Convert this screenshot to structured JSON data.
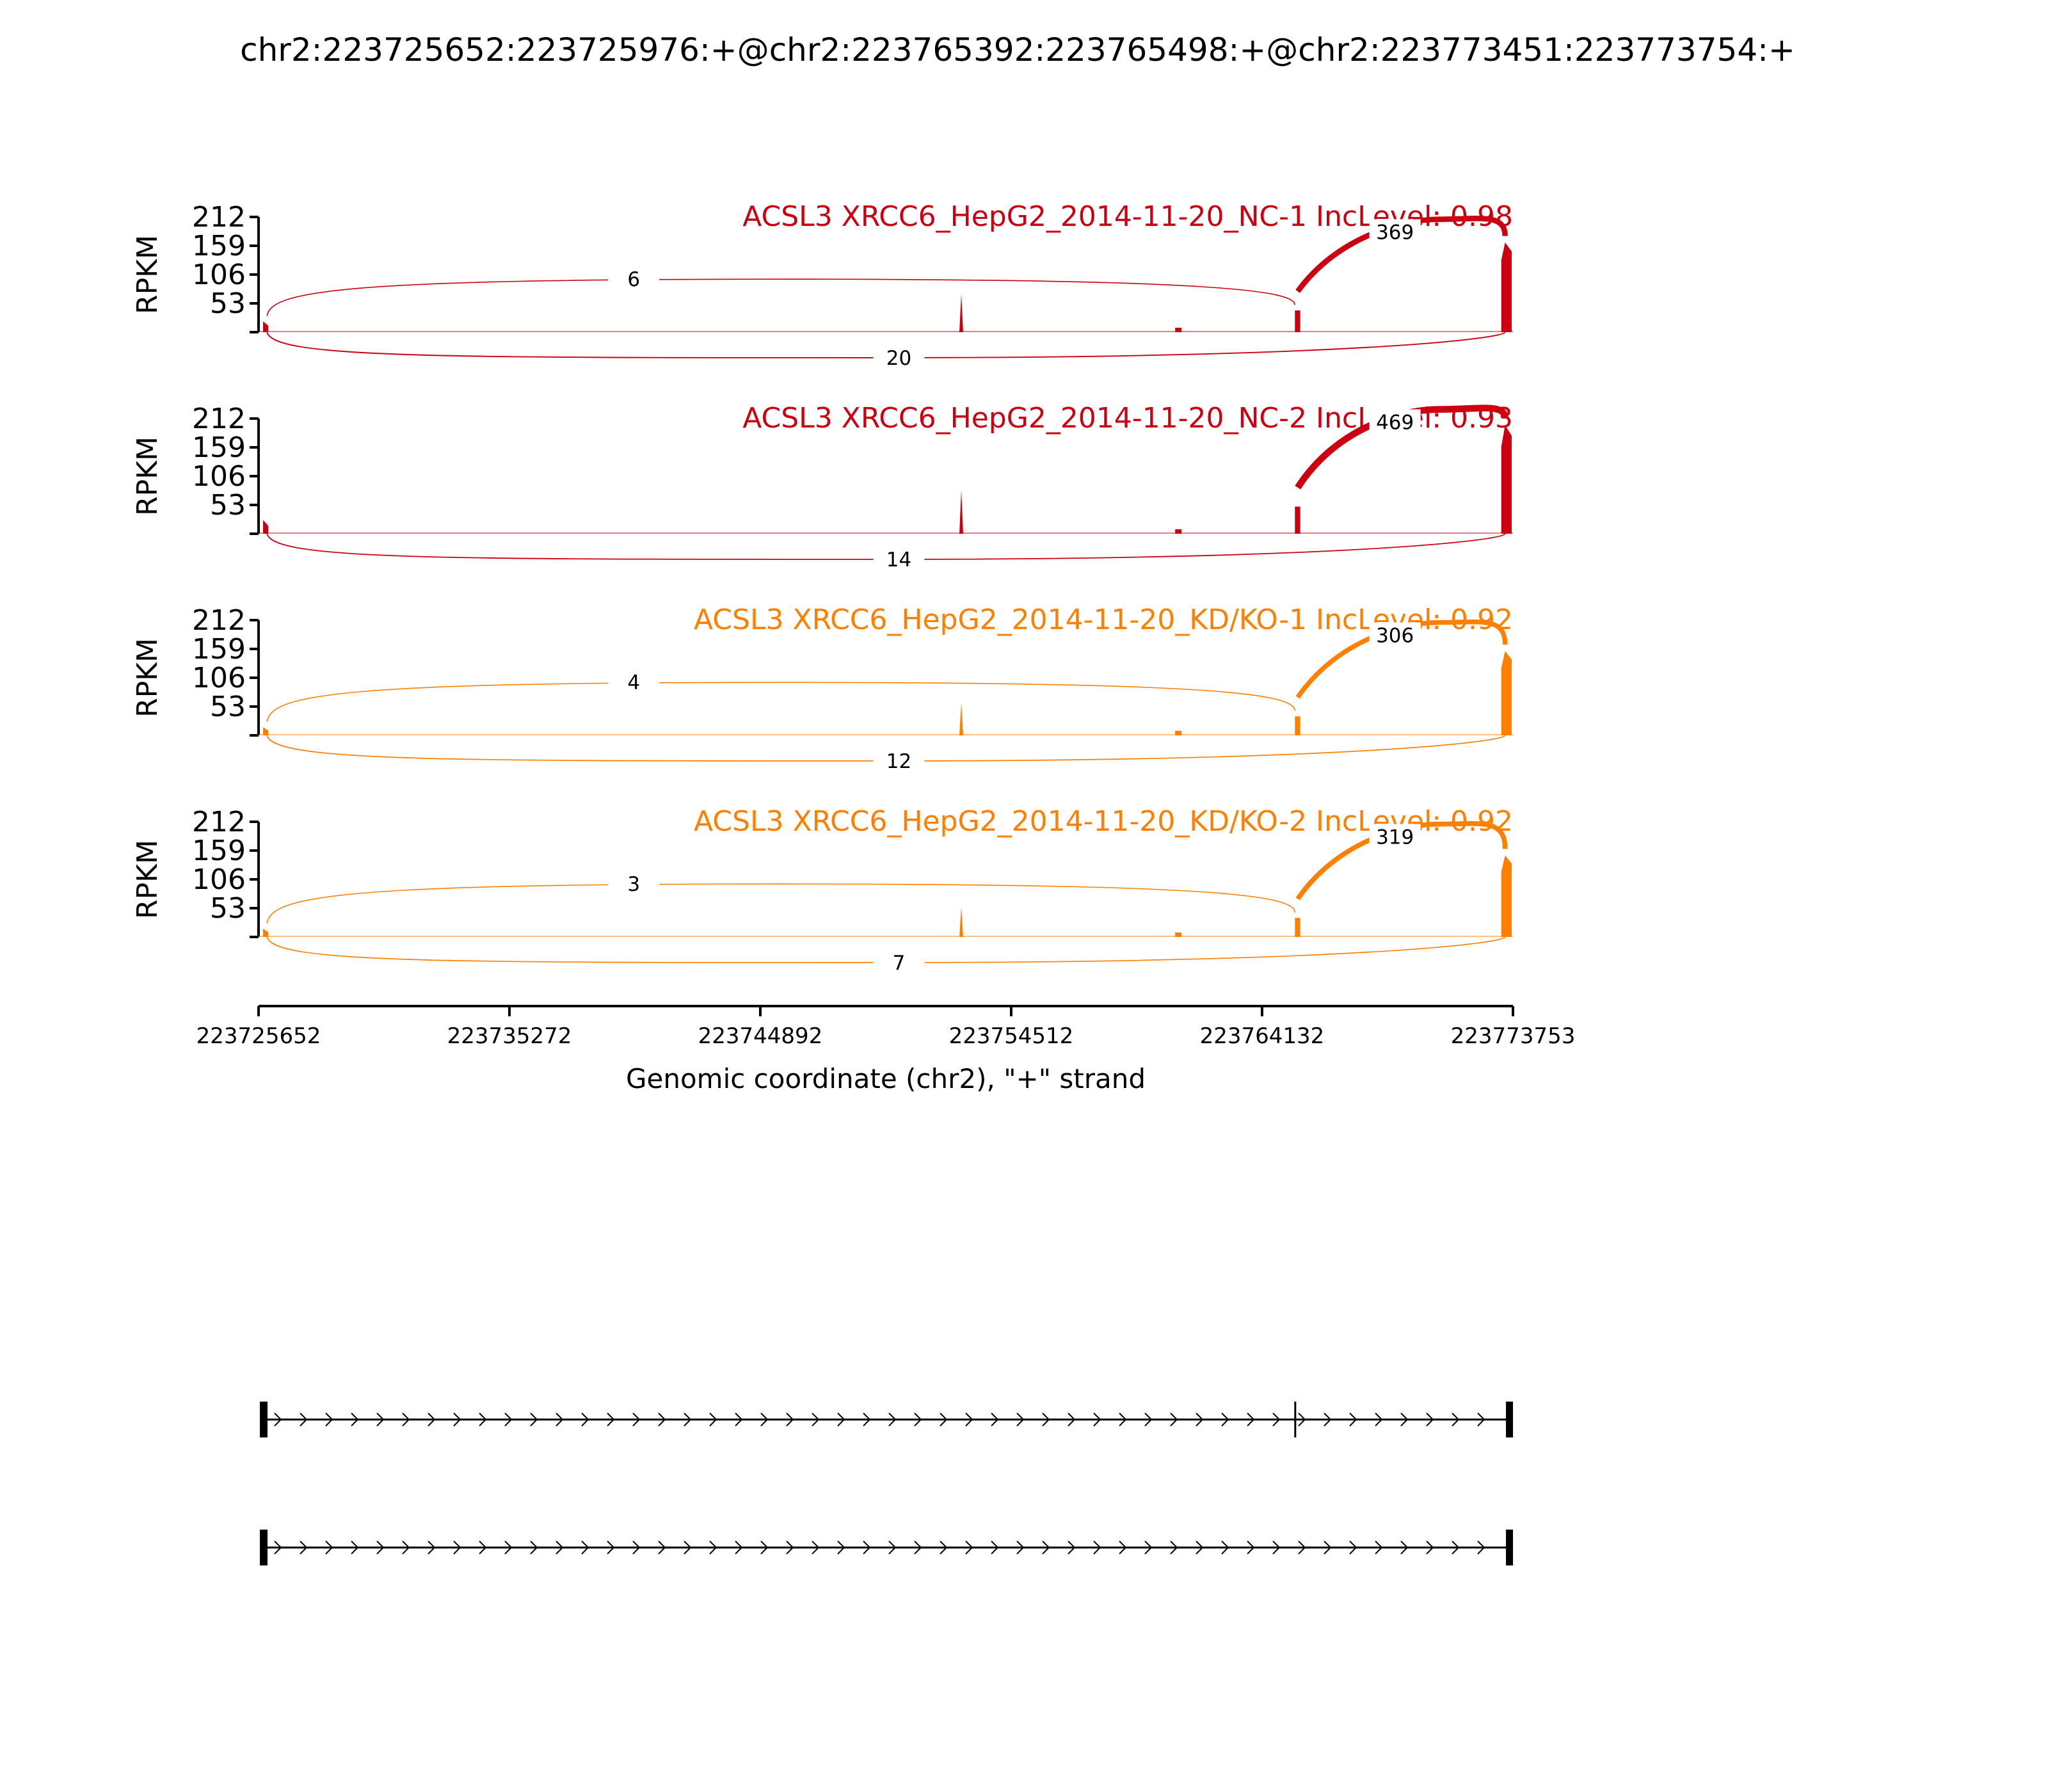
{
  "title": "chr2:223725652:223725976:+@chr2:223765392:223765498:+@chr2:223773451:223773754:+",
  "chart_data": {
    "type": "sashimi",
    "ylabel": "RPKM",
    "ylim": [
      0,
      212
    ],
    "yticks": [
      "212",
      "159",
      "106",
      "53"
    ],
    "xlabel": "Genomic coordinate (chr2), \"+\" strand",
    "xlim": [
      223725652,
      223773753
    ],
    "xticks": [
      "223725652",
      "223735272",
      "223744892",
      "223754512",
      "223764132",
      "223773753"
    ],
    "exons": [
      {
        "start": 223725652,
        "end": 223725976
      },
      {
        "start": 223765392,
        "end": 223765498
      },
      {
        "start": 223773451,
        "end": 223773754
      }
    ],
    "colors": {
      "NC": "#cc0011",
      "KD": "#ff8000"
    },
    "panels": [
      {
        "label": "ACSL3 XRCC6_HepG2_2014-11-20_NC-1 IncLevel: 0.98",
        "color": "#cc0011",
        "junctions": [
          {
            "from": 223725976,
            "to": 223765392,
            "count": "6",
            "side": "above"
          },
          {
            "from": 223765498,
            "to": 223773451,
            "count": "369",
            "side": "above"
          },
          {
            "from": 223725976,
            "to": 223773451,
            "count": "20",
            "side": "below"
          }
        ],
        "coverage": {
          "exon1": 20,
          "exon2": 40,
          "exon3": 165,
          "spike": 70
        }
      },
      {
        "label": "ACSL3 XRCC6_HepG2_2014-11-20_NC-2 IncLevel: 0.93",
        "color": "#cc0011",
        "junctions": [
          {
            "from": 223765498,
            "to": 223773451,
            "count": "469",
            "side": "above"
          },
          {
            "from": 223725976,
            "to": 223773451,
            "count": "14",
            "side": "below"
          }
        ],
        "coverage": {
          "exon1": 25,
          "exon2": 50,
          "exon3": 200,
          "spike": 80
        }
      },
      {
        "label": "ACSL3 XRCC6_HepG2_2014-11-20_KD/KO-1 IncLevel: 0.92",
        "color": "#ff8000",
        "junctions": [
          {
            "from": 223725976,
            "to": 223765392,
            "count": "4",
            "side": "above"
          },
          {
            "from": 223765498,
            "to": 223773451,
            "count": "306",
            "side": "above"
          },
          {
            "from": 223725976,
            "to": 223773451,
            "count": "12",
            "side": "below"
          }
        ],
        "coverage": {
          "exon1": 15,
          "exon2": 35,
          "exon3": 155,
          "spike": 60
        }
      },
      {
        "label": "ACSL3 XRCC6_HepG2_2014-11-20_KD/KO-2 IncLevel: 0.92",
        "color": "#ff8000",
        "junctions": [
          {
            "from": 223725976,
            "to": 223765392,
            "count": "3",
            "side": "above"
          },
          {
            "from": 223765498,
            "to": 223773451,
            "count": "319",
            "side": "above"
          },
          {
            "from": 223725976,
            "to": 223773451,
            "count": "7",
            "side": "below"
          }
        ],
        "coverage": {
          "exon1": 15,
          "exon2": 35,
          "exon3": 150,
          "spike": 55
        }
      }
    ],
    "isoforms": [
      {
        "exons": [
          0,
          1,
          2
        ]
      },
      {
        "exons": [
          0,
          2
        ]
      }
    ]
  }
}
